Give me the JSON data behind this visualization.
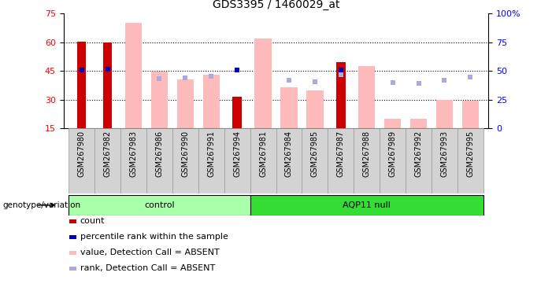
{
  "title": "GDS3395 / 1460029_at",
  "samples": [
    "GSM267980",
    "GSM267982",
    "GSM267983",
    "GSM267986",
    "GSM267990",
    "GSM267991",
    "GSM267994",
    "GSM267981",
    "GSM267984",
    "GSM267985",
    "GSM267987",
    "GSM267988",
    "GSM267989",
    "GSM267992",
    "GSM267993",
    "GSM267995"
  ],
  "n_control": 7,
  "n_aqp11": 9,
  "count_red": [
    60.5,
    60.0,
    null,
    null,
    null,
    null,
    31.5,
    null,
    null,
    null,
    49.5,
    null,
    null,
    null,
    null,
    null
  ],
  "percentile_blue": [
    45.5,
    46.0,
    null,
    null,
    null,
    null,
    45.5,
    null,
    null,
    null,
    45.5,
    null,
    null,
    null,
    null,
    null
  ],
  "value_pink": [
    null,
    null,
    70.0,
    44.5,
    40.5,
    43.0,
    null,
    62.0,
    36.5,
    35.0,
    null,
    47.5,
    20.0,
    20.0,
    30.0,
    29.5
  ],
  "rank_lightblue_pct": [
    null,
    null,
    null,
    43.5,
    44.0,
    45.5,
    null,
    null,
    42.0,
    40.5,
    47.0,
    null,
    40.0,
    39.5,
    42.0,
    45.0
  ],
  "ylim_left": [
    15,
    75
  ],
  "ylim_right": [
    0,
    100
  ],
  "yticks_left": [
    15,
    30,
    45,
    60,
    75
  ],
  "yticks_right": [
    0,
    25,
    50,
    75,
    100
  ],
  "ytick_right_labels": [
    "0",
    "25",
    "50",
    "75",
    "100%"
  ],
  "hgrid_lines": [
    30,
    45,
    60
  ],
  "control_label": "control",
  "aqp11_label": "AQP11 null",
  "genotype_label": "genotype/variation",
  "legend": [
    {
      "label": "count",
      "color": "#cc0000"
    },
    {
      "label": "percentile rank within the sample",
      "color": "#0000bb"
    },
    {
      "label": "value, Detection Call = ABSENT",
      "color": "#ffbbbb"
    },
    {
      "label": "rank, Detection Call = ABSENT",
      "color": "#aaaadd"
    }
  ]
}
